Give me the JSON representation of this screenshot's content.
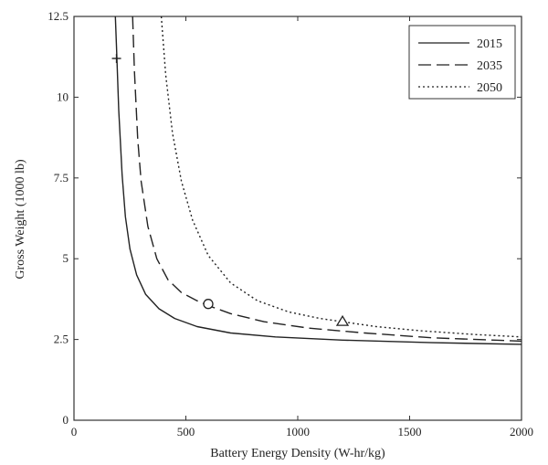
{
  "chart_data": {
    "type": "line",
    "title": "",
    "xlabel": "Battery Energy Density (W-hr/kg)",
    "ylabel": "Gross Weight (1000 lb)",
    "xlim": [
      0,
      2000
    ],
    "ylim": [
      0,
      12.5
    ],
    "xticks": [
      "0",
      "500",
      "1000",
      "1500",
      "2000"
    ],
    "yticks": [
      "0",
      "2.5",
      "5",
      "7.5",
      "10",
      "12.5"
    ],
    "grid": false,
    "legend_position": "top-right",
    "series": [
      {
        "name": "2015",
        "style": "solid",
        "x": [
          185,
          190,
          200,
          215,
          230,
          250,
          280,
          320,
          380,
          450,
          550,
          700,
          900,
          1200,
          1600,
          2000
        ],
        "y": [
          12.5,
          11.6,
          9.6,
          7.6,
          6.3,
          5.3,
          4.5,
          3.9,
          3.45,
          3.15,
          2.9,
          2.7,
          2.58,
          2.48,
          2.4,
          2.35
        ]
      },
      {
        "name": "2035",
        "style": "dashed",
        "x": [
          262,
          270,
          285,
          300,
          330,
          370,
          420,
          480,
          550,
          600,
          700,
          850,
          1050,
          1300,
          1600,
          2000
        ],
        "y": [
          12.5,
          10.8,
          8.7,
          7.4,
          6.0,
          5.0,
          4.35,
          3.95,
          3.7,
          3.55,
          3.3,
          3.05,
          2.85,
          2.7,
          2.55,
          2.45
        ]
      },
      {
        "name": "2050",
        "style": "dotted",
        "x": [
          390,
          410,
          440,
          480,
          530,
          600,
          700,
          820,
          960,
          1100,
          1200,
          1350,
          1550,
          1800,
          2000
        ],
        "y": [
          12.5,
          10.7,
          8.9,
          7.4,
          6.2,
          5.1,
          4.25,
          3.7,
          3.35,
          3.15,
          3.05,
          2.9,
          2.77,
          2.65,
          2.58
        ]
      }
    ],
    "markers": [
      {
        "series": "2015",
        "shape": "plus",
        "x": 190,
        "y": 11.2
      },
      {
        "series": "2035",
        "shape": "circle",
        "x": 600,
        "y": 3.6
      },
      {
        "series": "2050",
        "shape": "triangle",
        "x": 1200,
        "y": 3.05
      }
    ]
  }
}
